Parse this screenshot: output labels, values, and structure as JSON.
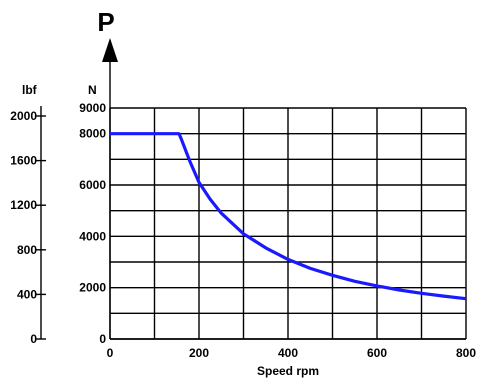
{
  "chart_data": {
    "type": "line",
    "title": "P",
    "xlabel": "Speed rpm",
    "x_ticks": [
      "0",
      "200",
      "400",
      "600",
      "800"
    ],
    "xlim": [
      0,
      800
    ],
    "y_unit_right": "N",
    "y_ticks_right": [
      "0",
      "2000",
      "4000",
      "6000",
      "8000",
      "9000"
    ],
    "ylim": [
      0,
      9000
    ],
    "y_unit_left": "lbf",
    "y_ticks_left": [
      "0",
      "400",
      "800",
      "1200",
      "1600",
      "2000"
    ],
    "grid": true,
    "line_color": "#1a1aff",
    "series": [
      {
        "x": [
          0,
          155,
          160,
          180,
          200,
          225,
          250,
          300,
          350,
          400,
          450,
          500,
          550,
          600,
          650,
          700,
          750,
          800
        ],
        "y": [
          8000,
          8000,
          7800,
          6900,
          6100,
          5450,
          4900,
          4100,
          3550,
          3100,
          2750,
          2480,
          2250,
          2070,
          1910,
          1780,
          1670,
          1570
        ]
      }
    ]
  }
}
